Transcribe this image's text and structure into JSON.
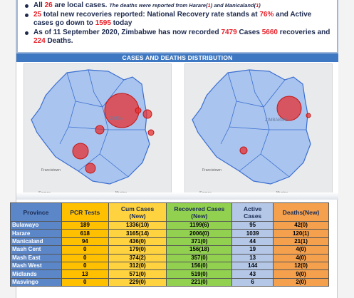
{
  "bullets": [
    {
      "parts": [
        {
          "text": "All ",
          "red": false
        },
        {
          "text": "26",
          "red": true
        },
        {
          "text": " are local cases. ",
          "red": false
        },
        {
          "text": "The deaths were reported from Harare(",
          "red": false,
          "small": true
        },
        {
          "text": "1",
          "red": true,
          "small": true
        },
        {
          "text": ") and Manicaland(",
          "red": false,
          "small": true
        },
        {
          "text": "1",
          "red": true,
          "small": true
        },
        {
          "text": ")",
          "red": false,
          "small": true
        }
      ]
    },
    {
      "parts": [
        {
          "text": "25",
          "red": true
        },
        {
          "text": " total new recoveries reported: National Recovery rate stands at ",
          "red": false
        },
        {
          "text": "76%",
          "red": true
        },
        {
          "text": " and Active cases go down to ",
          "red": false
        },
        {
          "text": "1595",
          "red": true
        },
        {
          "text": " today",
          "red": false
        }
      ]
    },
    {
      "parts": [
        {
          "text": "As of 11 September 2020, Zimbabwe has now recorded ",
          "red": false
        },
        {
          "text": "7479",
          "red": true
        },
        {
          "text": " Cases ",
          "red": false
        },
        {
          "text": "5660",
          "red": true
        },
        {
          "text": " recoveries and ",
          "red": false
        },
        {
          "text": "224",
          "red": true
        },
        {
          "text": " Deaths.",
          "red": false
        }
      ]
    }
  ],
  "banner": "CASES AND DEATHS DISTRIBUTION",
  "maps": {
    "left_labels": [
      "ZIMBA",
      "Francistown",
      "Serowe",
      "Musina"
    ],
    "right_labels": [
      "ZIMBABWE",
      "Francistown",
      "Serowe",
      "Musina"
    ],
    "case_color": "#e53030",
    "land_color": "#a9c4ee",
    "border_color": "#3b6fd1"
  },
  "table": {
    "headers": [
      "Province",
      "PCR Tests",
      "Cum Cases\n(New)",
      "Recovered Cases\n(New)",
      "Active\nCases",
      "Deaths(New)"
    ],
    "rows": [
      [
        "Bulawayo",
        "189",
        "1336(10)",
        "1199(6)",
        "95",
        "42(0)"
      ],
      [
        "Harare",
        "618",
        "3165(14)",
        "2006(0)",
        "1039",
        "120(1)"
      ],
      [
        "Manicaland",
        "94",
        "436(0)",
        "371(0)",
        "44",
        "21(1)"
      ],
      [
        "Mash Cent",
        "0",
        "179(0)",
        "156(18)",
        "19",
        "4(0)"
      ],
      [
        "Mash East",
        "0",
        "374(2)",
        "357(0)",
        "13",
        "4(0)"
      ],
      [
        "Mash West",
        "0",
        "312(0)",
        "156(0)",
        "144",
        "12(0)"
      ],
      [
        "Midlands",
        "13",
        "571(0)",
        "519(0)",
        "43",
        "9(0)"
      ],
      [
        "Masvingo",
        "0",
        "229(0)",
        "221(0)",
        "6",
        "2(0)"
      ]
    ]
  }
}
